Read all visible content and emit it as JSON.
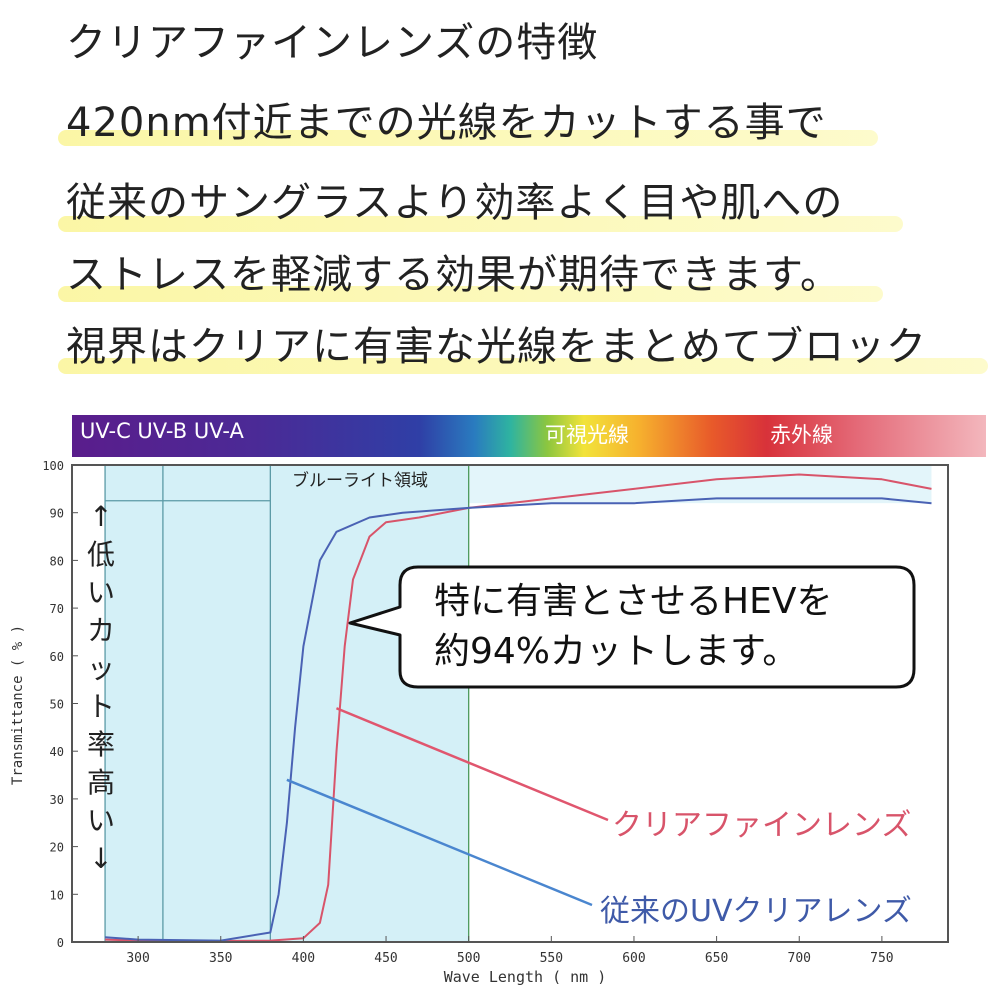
{
  "headline": {
    "lines": [
      "クリアファインレンズの特徴",
      "420nm付近までの光線をカットする事で",
      "従来のサングラスより効率よく目や肌への",
      "ストレスを軽減する効果が期待できます。",
      "視界はクリアに有害な光線をまとめてブロック"
    ]
  },
  "spectrum_bar": {
    "uv_labels": "UV-C UV-B UV-A",
    "visible_label": "可視光線",
    "infrared_label": "赤外線"
  },
  "colors": {
    "clear_fine": "#d8546a",
    "conventional": "#4a62b4",
    "shade": "#d4f0f7",
    "frame": "#555555"
  },
  "side_text": {
    "chars": [
      "↑",
      "低",
      "い",
      "カ",
      "ッ",
      "ト",
      "率",
      "高",
      "い",
      "↓"
    ]
  },
  "callout": {
    "line1": "特に有害とさせるHEVを",
    "line2": "約94%カットします。"
  },
  "chart_data": {
    "type": "line",
    "xlabel": "Wave Length ( nm )",
    "ylabel": "Transmittance ( % )",
    "xlim": [
      260,
      790
    ],
    "ylim": [
      0,
      100
    ],
    "x_ticks": [
      300,
      350,
      400,
      450,
      500,
      550,
      600,
      650,
      700,
      750
    ],
    "y_ticks": [
      0,
      10,
      20,
      30,
      40,
      50,
      60,
      70,
      80,
      90,
      100
    ],
    "band_label": "ブルーライト領域",
    "series": [
      {
        "name": "クリアファインレンズ",
        "x": [
          280,
          300,
          350,
          380,
          400,
          410,
          415,
          420,
          425,
          430,
          440,
          450,
          470,
          500,
          550,
          600,
          650,
          700,
          750,
          780
        ],
        "y": [
          0.5,
          0.3,
          0.2,
          0.3,
          0.8,
          4,
          12,
          40,
          62,
          76,
          85,
          88,
          89,
          91,
          93,
          95,
          97,
          98,
          97,
          95
        ]
      },
      {
        "name": "従来のUVクリアレンズ",
        "x": [
          280,
          300,
          350,
          380,
          385,
          390,
          395,
          400,
          410,
          420,
          440,
          460,
          500,
          550,
          600,
          650,
          700,
          750,
          780
        ],
        "y": [
          1,
          0.5,
          0.3,
          2,
          10,
          25,
          45,
          62,
          80,
          86,
          89,
          90,
          91,
          92,
          92,
          93,
          93,
          93,
          92
        ]
      }
    ]
  }
}
